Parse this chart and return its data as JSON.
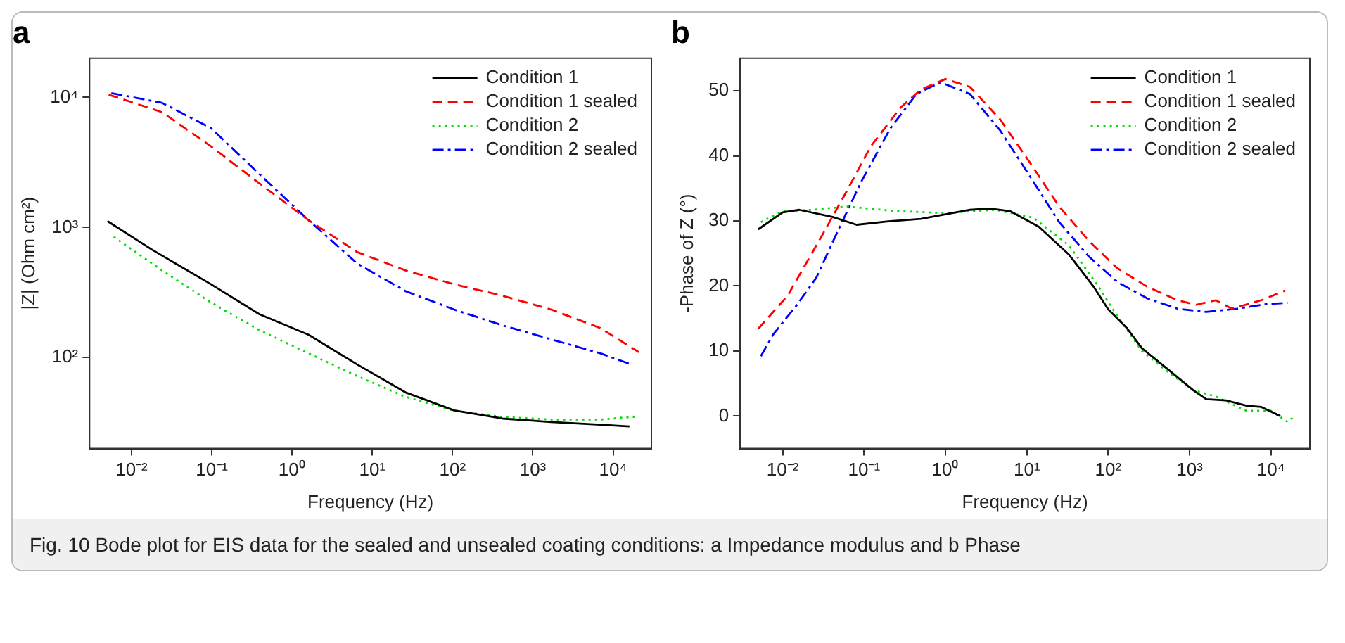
{
  "chart_data": [
    {
      "type": "line",
      "title": "a",
      "xlabel": "Frequency (Hz)",
      "ylabel": "|Z| (Ohm cm²)",
      "log": "xy",
      "grid": false,
      "legend": "top right",
      "xlim": [
        0.003,
        30000
      ],
      "ylim": [
        20,
        20000
      ],
      "xticks": [
        {
          "value": 0.01,
          "label": "10⁻²"
        },
        {
          "value": 0.1,
          "label": "10⁻¹"
        },
        {
          "value": 1,
          "label": "10⁰"
        },
        {
          "value": 10,
          "label": "10¹"
        },
        {
          "value": 100,
          "label": "10²"
        },
        {
          "value": 1000,
          "label": "10³"
        },
        {
          "value": 10000,
          "label": "10⁴"
        }
      ],
      "yticks": [
        {
          "value": 100,
          "label": "10²"
        },
        {
          "value": 1000,
          "label": "10³"
        },
        {
          "value": 10000,
          "label": "10⁴"
        }
      ],
      "annotations": [
        "Fig. 10  Bode plot for EIS data for the sealed and unsealed coating conditions: a Impedance modulus and b Phase"
      ],
      "series": [
        {
          "name": "Condition 1",
          "color": "#000000",
          "line_style": "solid",
          "x": [
            0.005,
            0.018,
            0.098,
            0.39,
            1.6,
            6.5,
            26,
            105,
            420,
            1700,
            6900,
            16000
          ],
          "values": [
            1120,
            676,
            366,
            216,
            150,
            88.5,
            54,
            39.3,
            34,
            32,
            30.5,
            29.6
          ]
        },
        {
          "name": "Condition 1 sealed",
          "color": "#ff0000",
          "line_style": "dashed",
          "x": [
            0.0052,
            0.024,
            0.098,
            0.39,
            1.6,
            6.5,
            26,
            105,
            420,
            1700,
            6900,
            21000
          ],
          "values": [
            10500,
            7700,
            4200,
            2190,
            1140,
            647,
            468,
            366,
            299,
            234,
            169,
            110
          ]
        },
        {
          "name": "Condition 2",
          "color": "#00dd00",
          "line_style": "dotted",
          "x": [
            0.006,
            0.024,
            0.098,
            0.39,
            1.6,
            6.5,
            26,
            105,
            420,
            1700,
            6900,
            21000
          ],
          "values": [
            847,
            468,
            265,
            163,
            108,
            72,
            50,
            39,
            35,
            33.4,
            33.4,
            35.4
          ]
        },
        {
          "name": "Condition 2 sealed",
          "color": "#0000ff",
          "line_style": "dashdot",
          "x": [
            0.0056,
            0.024,
            0.098,
            0.39,
            1.6,
            6.5,
            26,
            105,
            420,
            1700,
            6900,
            17000
          ],
          "values": [
            10800,
            9080,
            5800,
            2580,
            1140,
            528,
            324,
            234,
            177,
            138,
            108,
            88.5
          ]
        }
      ]
    },
    {
      "type": "line",
      "title": "b",
      "xlabel": "Frequency (Hz)",
      "ylabel": "-Phase of Z (°)",
      "log": "x",
      "grid": false,
      "legend": "top right",
      "xlim": [
        0.003,
        30000
      ],
      "ylim": [
        -5,
        55
      ],
      "xticks": [
        {
          "value": 0.01,
          "label": "10⁻²"
        },
        {
          "value": 0.1,
          "label": "10⁻¹"
        },
        {
          "value": 1,
          "label": "10⁰"
        },
        {
          "value": 10,
          "label": "10¹"
        },
        {
          "value": 100,
          "label": "10²"
        },
        {
          "value": 1000,
          "label": "10³"
        },
        {
          "value": 10000,
          "label": "10⁴"
        }
      ],
      "yticks": [
        0,
        10,
        20,
        30,
        40,
        50
      ],
      "series": [
        {
          "name": "Condition 1",
          "color": "#000000",
          "line_style": "solid",
          "x": [
            0.005,
            0.01,
            0.016,
            0.041,
            0.081,
            0.19,
            0.5,
            1,
            2,
            3.5,
            6.2,
            14,
            33,
            66,
            100,
            170,
            260,
            540,
            1100,
            1600,
            2800,
            5000,
            7600,
            13000
          ],
          "values": [
            28.7,
            31.3,
            31.7,
            30.6,
            29.4,
            29.9,
            30.3,
            31.0,
            31.7,
            31.9,
            31.5,
            29.1,
            24.8,
            19.9,
            16.4,
            13.5,
            10.4,
            7.2,
            4.0,
            2.6,
            2.4,
            1.6,
            1.4,
            0
          ]
        },
        {
          "name": "Condition 1 sealed",
          "color": "#ff0000",
          "line_style": "dashed",
          "x": [
            0.005,
            0.0115,
            0.03,
            0.062,
            0.12,
            0.28,
            0.5,
            1,
            2,
            4.7,
            11,
            25,
            58,
            130,
            300,
            710,
            1200,
            2100,
            3300,
            7600,
            15000
          ],
          "values": [
            13.4,
            18.5,
            27.6,
            34.7,
            41.4,
            47.4,
            50.2,
            51.8,
            50.6,
            45.6,
            38.9,
            32.2,
            26.9,
            22.7,
            19.9,
            17.8,
            17.1,
            17.8,
            16.5,
            17.8,
            19.3
          ]
        },
        {
          "name": "Condition 2",
          "color": "#00dd00",
          "line_style": "dotted",
          "x": [
            0.0054,
            0.01,
            0.023,
            0.062,
            0.25,
            1,
            4.1,
            12,
            33,
            76,
            130,
            260,
            540,
            1100,
            2100,
            5000,
            10000,
            16000,
            20000
          ],
          "values": [
            29.8,
            31.5,
            31.7,
            32.2,
            31.5,
            31.2,
            31.7,
            30.5,
            26.2,
            19.9,
            15.3,
            10.0,
            6.8,
            4.0,
            3.0,
            0.8,
            0.8,
            -0.9,
            0.1
          ]
        },
        {
          "name": "Condition 2 sealed",
          "color": "#0000ff",
          "line_style": "dashdot",
          "x": [
            0.0054,
            0.0076,
            0.015,
            0.026,
            0.047,
            0.093,
            0.21,
            0.44,
            0.87,
            2,
            4.7,
            11,
            25,
            58,
            130,
            300,
            710,
            1600,
            3800,
            8700,
            16000
          ],
          "values": [
            9.2,
            12.5,
            17.1,
            21.3,
            28.3,
            36.1,
            44.2,
            49.5,
            51.3,
            49.5,
            43.9,
            36.8,
            29.8,
            24.5,
            20.6,
            18.1,
            16.5,
            16.0,
            16.5,
            17.2,
            17.4
          ]
        }
      ]
    }
  ]
}
